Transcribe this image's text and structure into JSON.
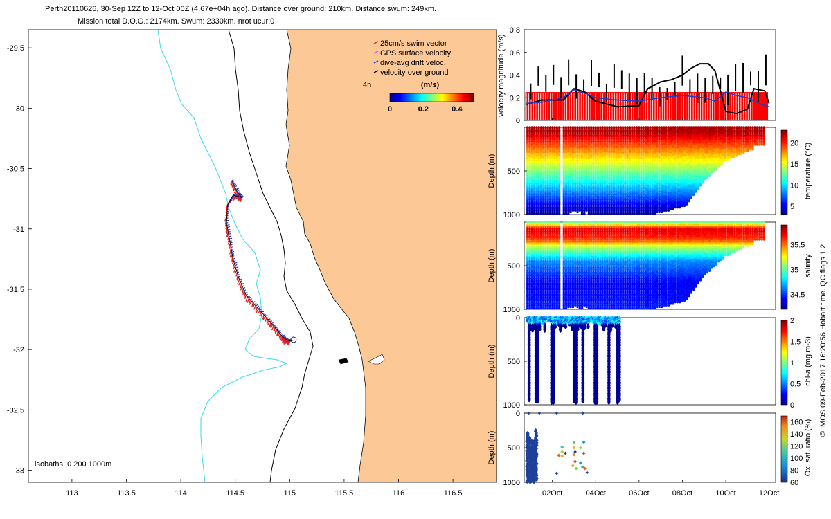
{
  "header": {
    "line1": "Perth20110626, 30-Sep 12Z to 12-Oct 00Z (4.67e+04h ago). Distance over ground: 210km. Distance swum: 249km.",
    "line2": "Mission total D.O.G.: 2174km. Swum: 2330km. nrot ucur:0"
  },
  "footer_credit": "© IMOS 09-Feb-2017 16:20:56 Hobart time. QC flags 1  2",
  "colors": {
    "land": "#fcc896",
    "isobath_200": "#33ddee",
    "isobath_1000": "#000000",
    "swim_vector": "#e02020",
    "gps_velocity": "#ff44cc",
    "drift_velocity": "#1f3ad0",
    "ground_velocity": "#000000"
  },
  "chart_data": [
    {
      "type": "scatter",
      "name": "map",
      "xlim": [
        112.6,
        116.9
      ],
      "ylim": [
        -33.1,
        -29.35
      ],
      "x_ticks": [
        "113",
        "113.5",
        "114",
        "114.5",
        "115",
        "115.5",
        "116",
        "116.5"
      ],
      "y_ticks": [
        "-29.5",
        "-30",
        "-30.5",
        "-31",
        "-31.5",
        "-32",
        "-32.5",
        "-33"
      ],
      "legend": {
        "position": "top-right",
        "items": [
          "25cm/s swim vector",
          "GPS surface velocity",
          "dive-avg drift veloc.",
          "velocity over ground"
        ]
      },
      "colorbar": {
        "title": "(m/s)",
        "duration_label": "4h",
        "ticks": [
          "0",
          "0.2",
          "0.4"
        ],
        "range": [
          0,
          0.5
        ]
      },
      "isobaths_label": "isobaths:  0    200   1000m",
      "track": [
        [
          114.47,
          -30.6
        ],
        [
          114.52,
          -30.7
        ],
        [
          114.56,
          -30.74
        ],
        [
          114.48,
          -30.72
        ],
        [
          114.43,
          -30.8
        ],
        [
          114.42,
          -30.95
        ],
        [
          114.45,
          -31.1
        ],
        [
          114.48,
          -31.25
        ],
        [
          114.53,
          -31.4
        ],
        [
          114.6,
          -31.55
        ],
        [
          114.7,
          -31.65
        ],
        [
          114.8,
          -31.75
        ],
        [
          114.87,
          -31.82
        ],
        [
          114.93,
          -31.89
        ],
        [
          114.97,
          -31.92
        ],
        [
          115.01,
          -31.93
        ]
      ]
    },
    {
      "type": "line",
      "name": "velocity",
      "ylabel": "velocity magnitude (m/s)",
      "ylim": [
        0,
        0.8
      ],
      "y_ticks": [
        "0",
        "0.2",
        "0.4",
        "0.6",
        "0.8"
      ],
      "xlim": [
        0.7,
        12.3
      ],
      "series": [
        {
          "key": "velocity over ground",
          "x": [
            0.8,
            1.5,
            2.5,
            3.0,
            3.5,
            4.0,
            5.0,
            6.0,
            6.4,
            7.0,
            7.5,
            8.0,
            8.4,
            8.8,
            9.2,
            9.5,
            10.0,
            10.5,
            11.0,
            11.3,
            11.8,
            12.0
          ],
          "y": [
            0.14,
            0.18,
            0.18,
            0.28,
            0.25,
            0.17,
            0.12,
            0.13,
            0.28,
            0.34,
            0.36,
            0.4,
            0.46,
            0.5,
            0.5,
            0.44,
            0.08,
            0.06,
            0.1,
            0.28,
            0.26,
            0.15
          ]
        },
        {
          "key": "dive-avg drift veloc.",
          "x": [
            0.8,
            1.5,
            2.5,
            3.0,
            3.5,
            4.0,
            5.0,
            6.0,
            7.0,
            8.0,
            9.0,
            9.5,
            10.0,
            10.5,
            11.0,
            11.5,
            12.0
          ],
          "y": [
            0.15,
            0.16,
            0.2,
            0.27,
            0.24,
            0.2,
            0.18,
            0.17,
            0.2,
            0.22,
            0.2,
            0.17,
            0.25,
            0.22,
            0.2,
            0.15,
            0.12
          ]
        }
      ],
      "swim_speed": 0.25
    },
    {
      "type": "heatmap",
      "name": "temperature",
      "ylabel": "Depth (m)",
      "cblabel": "temperature (°C)",
      "ylim": [
        1000,
        0
      ],
      "y_ticks": [
        "500",
        "1000"
      ],
      "cb_range": [
        3,
        23
      ],
      "cb_ticks": [
        "5",
        "10",
        "15",
        "20"
      ],
      "surface": 22,
      "deep": 4
    },
    {
      "type": "heatmap",
      "name": "salinity",
      "ylabel": "Depth (m)",
      "cblabel": "salinity",
      "ylim": [
        1000,
        0
      ],
      "y_ticks": [
        "500",
        "1000"
      ],
      "cb_range": [
        34.2,
        35.9
      ],
      "cb_ticks": [
        "34.5",
        "35",
        "35.5"
      ],
      "profile": [
        [
          0,
          35.0
        ],
        [
          80,
          35.75
        ],
        [
          200,
          35.6
        ],
        [
          300,
          35.1
        ],
        [
          450,
          34.65
        ],
        [
          700,
          34.4
        ],
        [
          1000,
          34.45
        ]
      ]
    },
    {
      "type": "scatter",
      "name": "chla",
      "ylabel": "Depth (m)",
      "cblabel": "chl-a (mg m-3)",
      "ylim": [
        1000,
        0
      ],
      "y_ticks": [
        "0",
        "500",
        "1000"
      ],
      "cb_range": [
        0,
        2
      ],
      "cb_ticks": [
        "0",
        "0.5",
        "1",
        "1.5",
        "2"
      ]
    },
    {
      "type": "scatter",
      "name": "oxygen",
      "ylabel": "Depth (m)",
      "cblabel": "Ox. sat. ratio (%)",
      "ylim": [
        1000,
        0
      ],
      "y_ticks": [
        "0",
        "500",
        "1000"
      ],
      "cb_range": [
        60,
        170
      ],
      "cb_ticks": [
        "60",
        "80",
        "100",
        "120",
        "140",
        "160"
      ],
      "x_ticks": [
        "02Oct",
        "04Oct",
        "06Oct",
        "08Oct",
        "10Oct",
        "12Oct"
      ]
    }
  ]
}
